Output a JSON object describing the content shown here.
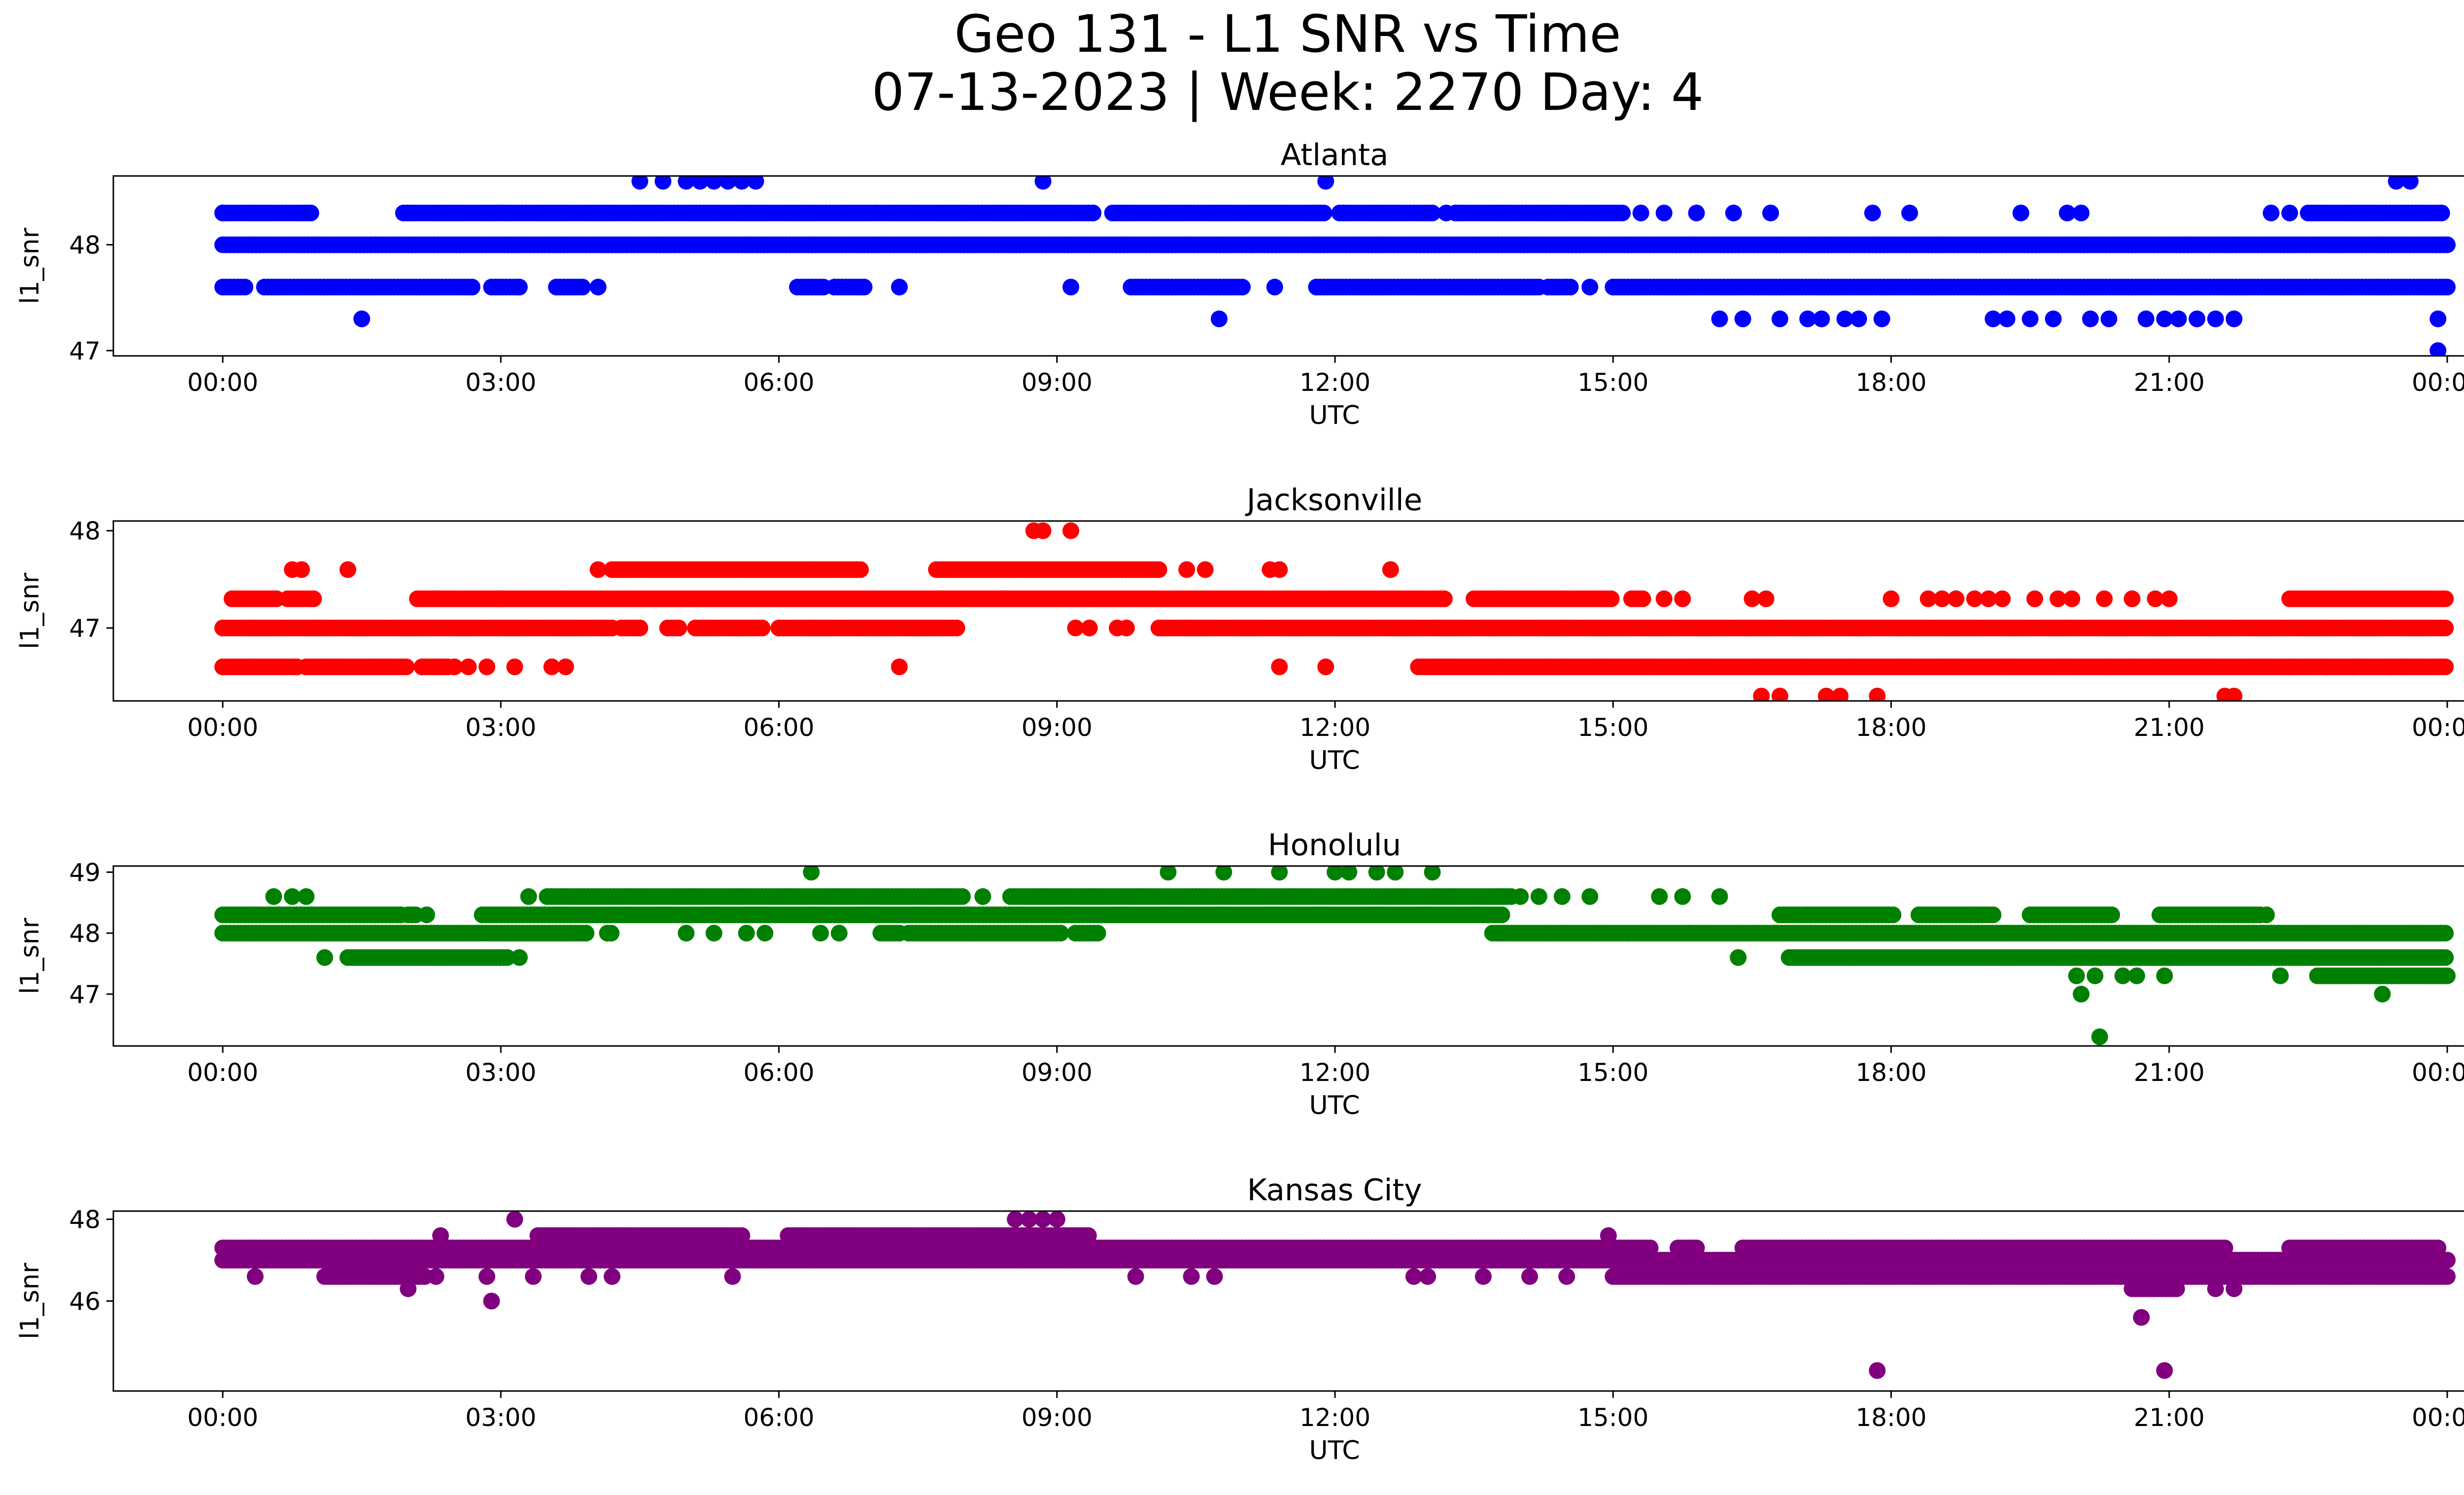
{
  "figure": {
    "title_line1": "Geo 131 - L1 SNR vs Time",
    "title_line2": "07-13-2023 | Week: 2270 Day: 4"
  },
  "chart_data": [
    {
      "type": "scatter",
      "title": "Atlanta",
      "xlabel": "UTC",
      "ylabel": "l1_snr",
      "color": "#0000ff",
      "xlim": [
        "00:00",
        "24:00"
      ],
      "x_ticks": [
        "00:00",
        "03:00",
        "06:00",
        "09:00",
        "12:00",
        "15:00",
        "18:00",
        "21:00",
        "00:00"
      ],
      "ylim": [
        46.95,
        48.65
      ],
      "y_ticks": [
        47,
        48
      ],
      "bands": [
        {
          "y": 48.0,
          "ranges": [
            [
              0.0,
              24.0
            ]
          ]
        },
        {
          "y": 48.3,
          "ranges": [
            [
              0.0,
              0.95
            ],
            [
              1.95,
              9.4
            ],
            [
              9.6,
              11.9
            ],
            [
              12.05,
              13.05
            ],
            [
              13.3,
              15.1
            ],
            [
              22.5,
              23.95
            ]
          ]
        },
        {
          "y": 47.6,
          "ranges": [
            [
              0.0,
              0.25
            ],
            [
              0.45,
              2.7
            ],
            [
              2.9,
              3.2
            ],
            [
              3.6,
              3.9
            ],
            [
              6.2,
              6.5
            ],
            [
              6.6,
              6.95
            ],
            [
              9.8,
              11.0
            ],
            [
              11.8,
              14.2
            ],
            [
              14.3,
              14.55
            ],
            [
              15.0,
              24.0
            ]
          ]
        }
      ],
      "points": [
        {
          "x": 0.0,
          "y": 48.3
        },
        {
          "x": 0.95,
          "y": 48.3
        },
        {
          "x": 1.5,
          "y": 47.3
        },
        {
          "x": 2.0,
          "y": 48.3
        },
        {
          "x": 3.2,
          "y": 47.6
        },
        {
          "x": 4.05,
          "y": 47.6
        },
        {
          "x": 4.5,
          "y": 48.6
        },
        {
          "x": 4.75,
          "y": 48.6
        },
        {
          "x": 5.0,
          "y": 48.6
        },
        {
          "x": 5.15,
          "y": 48.6
        },
        {
          "x": 5.3,
          "y": 48.6
        },
        {
          "x": 5.45,
          "y": 48.6
        },
        {
          "x": 5.6,
          "y": 48.6
        },
        {
          "x": 5.75,
          "y": 48.6
        },
        {
          "x": 7.3,
          "y": 47.6
        },
        {
          "x": 8.85,
          "y": 48.6
        },
        {
          "x": 9.15,
          "y": 47.6
        },
        {
          "x": 10.75,
          "y": 47.3
        },
        {
          "x": 11.35,
          "y": 47.6
        },
        {
          "x": 11.9,
          "y": 48.6
        },
        {
          "x": 13.2,
          "y": 48.3
        },
        {
          "x": 14.75,
          "y": 47.6
        },
        {
          "x": 15.3,
          "y": 48.3
        },
        {
          "x": 15.55,
          "y": 48.3
        },
        {
          "x": 15.9,
          "y": 48.3
        },
        {
          "x": 16.15,
          "y": 47.3
        },
        {
          "x": 16.3,
          "y": 48.3
        },
        {
          "x": 16.4,
          "y": 47.3
        },
        {
          "x": 16.7,
          "y": 48.3
        },
        {
          "x": 16.8,
          "y": 47.3
        },
        {
          "x": 17.1,
          "y": 47.3
        },
        {
          "x": 17.25,
          "y": 47.3
        },
        {
          "x": 17.5,
          "y": 47.3
        },
        {
          "x": 17.65,
          "y": 47.3
        },
        {
          "x": 17.8,
          "y": 48.3
        },
        {
          "x": 17.9,
          "y": 47.3
        },
        {
          "x": 18.2,
          "y": 48.3
        },
        {
          "x": 19.1,
          "y": 47.3
        },
        {
          "x": 19.25,
          "y": 47.3
        },
        {
          "x": 19.4,
          "y": 48.3
        },
        {
          "x": 19.5,
          "y": 47.3
        },
        {
          "x": 19.75,
          "y": 47.3
        },
        {
          "x": 19.9,
          "y": 48.3
        },
        {
          "x": 20.05,
          "y": 48.3
        },
        {
          "x": 20.15,
          "y": 47.3
        },
        {
          "x": 20.35,
          "y": 47.3
        },
        {
          "x": 20.75,
          "y": 47.3
        },
        {
          "x": 20.95,
          "y": 47.3
        },
        {
          "x": 21.1,
          "y": 47.3
        },
        {
          "x": 21.3,
          "y": 47.3
        },
        {
          "x": 21.5,
          "y": 47.3
        },
        {
          "x": 21.7,
          "y": 47.3
        },
        {
          "x": 22.1,
          "y": 48.3
        },
        {
          "x": 22.3,
          "y": 48.3
        },
        {
          "x": 23.45,
          "y": 48.6
        },
        {
          "x": 23.6,
          "y": 48.6
        },
        {
          "x": 23.9,
          "y": 47.3
        },
        {
          "x": 23.9,
          "y": 47.0
        }
      ]
    },
    {
      "type": "scatter",
      "title": "Jacksonville",
      "xlabel": "UTC",
      "ylabel": "l1_snr",
      "color": "#ff0000",
      "xlim": [
        "00:00",
        "24:00"
      ],
      "x_ticks": [
        "00:00",
        "03:00",
        "06:00",
        "09:00",
        "12:00",
        "15:00",
        "18:00",
        "21:00",
        "00:00"
      ],
      "ylim": [
        46.25,
        48.1
      ],
      "y_ticks": [
        47,
        48
      ],
      "bands": [
        {
          "y": 47.0,
          "ranges": [
            [
              0.0,
              4.2
            ],
            [
              4.3,
              4.5
            ],
            [
              4.8,
              4.95
            ],
            [
              5.1,
              5.85
            ],
            [
              6.0,
              7.95
            ],
            [
              10.1,
              24.0
            ]
          ]
        },
        {
          "y": 47.3,
          "ranges": [
            [
              0.1,
              0.6
            ],
            [
              0.7,
              1.0
            ],
            [
              2.1,
              13.2
            ],
            [
              13.5,
              15.0
            ],
            [
              15.2,
              15.35
            ],
            [
              22.3,
              24.0
            ]
          ]
        },
        {
          "y": 46.6,
          "ranges": [
            [
              0.0,
              0.8
            ],
            [
              0.9,
              2.0
            ],
            [
              2.15,
              2.45
            ],
            [
              12.9,
              24.0
            ]
          ]
        },
        {
          "y": 47.6,
          "ranges": [
            [
              4.2,
              6.9
            ],
            [
              7.7,
              10.1
            ]
          ]
        }
      ],
      "points": [
        {
          "x": 0.75,
          "y": 47.6
        },
        {
          "x": 0.85,
          "y": 47.6
        },
        {
          "x": 1.35,
          "y": 47.6
        },
        {
          "x": 2.5,
          "y": 46.6
        },
        {
          "x": 2.65,
          "y": 46.6
        },
        {
          "x": 2.85,
          "y": 46.6
        },
        {
          "x": 3.15,
          "y": 46.6
        },
        {
          "x": 3.55,
          "y": 46.6
        },
        {
          "x": 3.7,
          "y": 46.6
        },
        {
          "x": 4.05,
          "y": 47.6
        },
        {
          "x": 7.3,
          "y": 46.6
        },
        {
          "x": 8.75,
          "y": 48.0
        },
        {
          "x": 8.85,
          "y": 48.0
        },
        {
          "x": 9.15,
          "y": 48.0
        },
        {
          "x": 9.2,
          "y": 47.0
        },
        {
          "x": 9.35,
          "y": 47.0
        },
        {
          "x": 9.65,
          "y": 47.0
        },
        {
          "x": 9.75,
          "y": 47.0
        },
        {
          "x": 10.4,
          "y": 47.6
        },
        {
          "x": 10.6,
          "y": 47.6
        },
        {
          "x": 11.3,
          "y": 47.6
        },
        {
          "x": 11.4,
          "y": 47.6
        },
        {
          "x": 11.4,
          "y": 46.6
        },
        {
          "x": 11.9,
          "y": 46.6
        },
        {
          "x": 12.6,
          "y": 47.6
        },
        {
          "x": 15.55,
          "y": 47.3
        },
        {
          "x": 15.75,
          "y": 47.3
        },
        {
          "x": 16.5,
          "y": 47.3
        },
        {
          "x": 16.65,
          "y": 47.3
        },
        {
          "x": 16.6,
          "y": 46.3
        },
        {
          "x": 16.8,
          "y": 46.3
        },
        {
          "x": 17.3,
          "y": 46.3
        },
        {
          "x": 17.45,
          "y": 46.3
        },
        {
          "x": 17.85,
          "y": 46.3
        },
        {
          "x": 18.0,
          "y": 47.3
        },
        {
          "x": 18.4,
          "y": 47.3
        },
        {
          "x": 18.55,
          "y": 47.3
        },
        {
          "x": 18.7,
          "y": 47.3
        },
        {
          "x": 18.9,
          "y": 47.3
        },
        {
          "x": 19.05,
          "y": 47.3
        },
        {
          "x": 19.2,
          "y": 47.3
        },
        {
          "x": 19.55,
          "y": 47.3
        },
        {
          "x": 19.8,
          "y": 47.3
        },
        {
          "x": 19.95,
          "y": 47.3
        },
        {
          "x": 20.3,
          "y": 47.3
        },
        {
          "x": 20.6,
          "y": 47.3
        },
        {
          "x": 20.85,
          "y": 47.3
        },
        {
          "x": 21.0,
          "y": 47.3
        },
        {
          "x": 21.6,
          "y": 46.3
        },
        {
          "x": 21.7,
          "y": 46.3
        },
        {
          "x": 22.3,
          "y": 46.6
        },
        {
          "x": 22.7,
          "y": 46.6
        },
        {
          "x": 23.0,
          "y": 46.6
        },
        {
          "x": 23.4,
          "y": 46.6
        },
        {
          "x": 23.55,
          "y": 46.6
        },
        {
          "x": 23.9,
          "y": 46.6
        }
      ]
    },
    {
      "type": "scatter",
      "title": "Honolulu",
      "xlabel": "UTC",
      "ylabel": "l1_snr",
      "color": "#008000",
      "xlim": [
        "00:00",
        "24:00"
      ],
      "x_ticks": [
        "00:00",
        "03:00",
        "06:00",
        "09:00",
        "12:00",
        "15:00",
        "18:00",
        "21:00",
        "00:00"
      ],
      "ylim": [
        46.15,
        49.1
      ],
      "y_ticks": [
        47,
        48,
        49
      ],
      "bands": [
        {
          "y": 48.3,
          "ranges": [
            [
              0.0,
              1.95
            ],
            [
              2.0,
              2.1
            ],
            [
              2.8,
              13.8
            ],
            [
              16.8,
              17.1
            ],
            [
              17.1,
              18.05
            ],
            [
              18.3,
              19.1
            ],
            [
              19.5,
              20.4
            ],
            [
              20.9,
              22.0
            ]
          ]
        },
        {
          "y": 48.0,
          "ranges": [
            [
              0.0,
              3.95
            ],
            [
              4.15,
              4.2
            ],
            [
              7.1,
              7.3
            ],
            [
              7.4,
              9.05
            ],
            [
              9.2,
              9.45
            ],
            [
              13.7,
              24.0
            ]
          ]
        },
        {
          "y": 48.6,
          "ranges": [
            [
              3.5,
              8.0
            ],
            [
              8.5,
              13.9
            ]
          ]
        },
        {
          "y": 47.6,
          "ranges": [
            [
              1.35,
              3.1
            ],
            [
              16.9,
              24.0
            ]
          ]
        },
        {
          "y": 47.3,
          "ranges": [
            [
              22.6,
              24.0
            ]
          ]
        }
      ],
      "points": [
        {
          "x": 0.55,
          "y": 48.6
        },
        {
          "x": 0.75,
          "y": 48.6
        },
        {
          "x": 0.9,
          "y": 48.6
        },
        {
          "x": 1.1,
          "y": 47.6
        },
        {
          "x": 2.2,
          "y": 48.3
        },
        {
          "x": 3.2,
          "y": 47.6
        },
        {
          "x": 3.3,
          "y": 48.6
        },
        {
          "x": 5.0,
          "y": 48.0
        },
        {
          "x": 5.3,
          "y": 48.0
        },
        {
          "x": 5.65,
          "y": 48.0
        },
        {
          "x": 5.85,
          "y": 48.0
        },
        {
          "x": 6.35,
          "y": 49.0
        },
        {
          "x": 6.45,
          "y": 48.0
        },
        {
          "x": 6.65,
          "y": 48.0
        },
        {
          "x": 8.2,
          "y": 48.6
        },
        {
          "x": 10.2,
          "y": 49.0
        },
        {
          "x": 10.8,
          "y": 49.0
        },
        {
          "x": 11.4,
          "y": 49.0
        },
        {
          "x": 12.0,
          "y": 49.0
        },
        {
          "x": 12.15,
          "y": 49.0
        },
        {
          "x": 12.45,
          "y": 49.0
        },
        {
          "x": 12.65,
          "y": 49.0
        },
        {
          "x": 13.05,
          "y": 49.0
        },
        {
          "x": 14.0,
          "y": 48.6
        },
        {
          "x": 14.2,
          "y": 48.6
        },
        {
          "x": 14.45,
          "y": 48.6
        },
        {
          "x": 14.75,
          "y": 48.6
        },
        {
          "x": 15.5,
          "y": 48.6
        },
        {
          "x": 15.75,
          "y": 48.6
        },
        {
          "x": 16.15,
          "y": 48.6
        },
        {
          "x": 16.35,
          "y": 47.6
        },
        {
          "x": 18.85,
          "y": 48.3
        },
        {
          "x": 20.0,
          "y": 47.3
        },
        {
          "x": 20.05,
          "y": 47.0
        },
        {
          "x": 20.2,
          "y": 47.3
        },
        {
          "x": 20.5,
          "y": 47.3
        },
        {
          "x": 20.65,
          "y": 47.3
        },
        {
          "x": 20.95,
          "y": 47.3
        },
        {
          "x": 20.25,
          "y": 46.3
        },
        {
          "x": 22.05,
          "y": 48.3
        },
        {
          "x": 22.2,
          "y": 47.3
        },
        {
          "x": 23.3,
          "y": 47.0
        }
      ]
    },
    {
      "type": "scatter",
      "title": "Kansas City",
      "xlabel": "UTC",
      "ylabel": "l1_snr",
      "color": "#800080",
      "xlim": [
        "00:00",
        "24:00"
      ],
      "x_ticks": [
        "00:00",
        "03:00",
        "06:00",
        "09:00",
        "12:00",
        "15:00",
        "18:00",
        "21:00",
        "00:00"
      ],
      "ylim": [
        43.8,
        48.2
      ],
      "y_ticks": [
        46,
        48
      ],
      "bands": [
        {
          "y": 47.3,
          "ranges": [
            [
              0.0,
              15.4
            ],
            [
              15.7,
              15.9
            ],
            [
              16.4,
              21.6
            ],
            [
              22.3,
              23.9
            ]
          ]
        },
        {
          "y": 47.0,
          "ranges": [
            [
              0.0,
              24.0
            ]
          ]
        },
        {
          "y": 46.6,
          "ranges": [
            [
              1.1,
              2.2
            ],
            [
              15.0,
              24.0
            ]
          ]
        },
        {
          "y": 47.6,
          "ranges": [
            [
              3.4,
              5.6
            ],
            [
              6.1,
              9.35
            ]
          ]
        },
        {
          "y": 46.3,
          "ranges": [
            [
              20.6,
              21.1
            ]
          ]
        }
      ],
      "points": [
        {
          "x": 0.35,
          "y": 46.6
        },
        {
          "x": 2.0,
          "y": 46.3
        },
        {
          "x": 2.3,
          "y": 46.6
        },
        {
          "x": 2.35,
          "y": 47.6
        },
        {
          "x": 2.85,
          "y": 46.6
        },
        {
          "x": 2.9,
          "y": 46.0
        },
        {
          "x": 3.15,
          "y": 48.0
        },
        {
          "x": 3.35,
          "y": 46.6
        },
        {
          "x": 3.95,
          "y": 46.6
        },
        {
          "x": 4.2,
          "y": 46.6
        },
        {
          "x": 4.25,
          "y": 47.6
        },
        {
          "x": 5.5,
          "y": 46.6
        },
        {
          "x": 8.55,
          "y": 48.0
        },
        {
          "x": 8.7,
          "y": 48.0
        },
        {
          "x": 8.85,
          "y": 48.0
        },
        {
          "x": 9.0,
          "y": 48.0
        },
        {
          "x": 9.85,
          "y": 46.6
        },
        {
          "x": 10.45,
          "y": 46.6
        },
        {
          "x": 10.7,
          "y": 46.6
        },
        {
          "x": 12.85,
          "y": 46.6
        },
        {
          "x": 13.0,
          "y": 46.6
        },
        {
          "x": 13.6,
          "y": 46.6
        },
        {
          "x": 14.1,
          "y": 46.6
        },
        {
          "x": 14.5,
          "y": 46.6
        },
        {
          "x": 14.95,
          "y": 47.6
        },
        {
          "x": 17.85,
          "y": 44.3
        },
        {
          "x": 20.7,
          "y": 45.6
        },
        {
          "x": 20.95,
          "y": 44.3
        },
        {
          "x": 21.5,
          "y": 46.3
        },
        {
          "x": 21.7,
          "y": 46.3
        }
      ]
    }
  ]
}
